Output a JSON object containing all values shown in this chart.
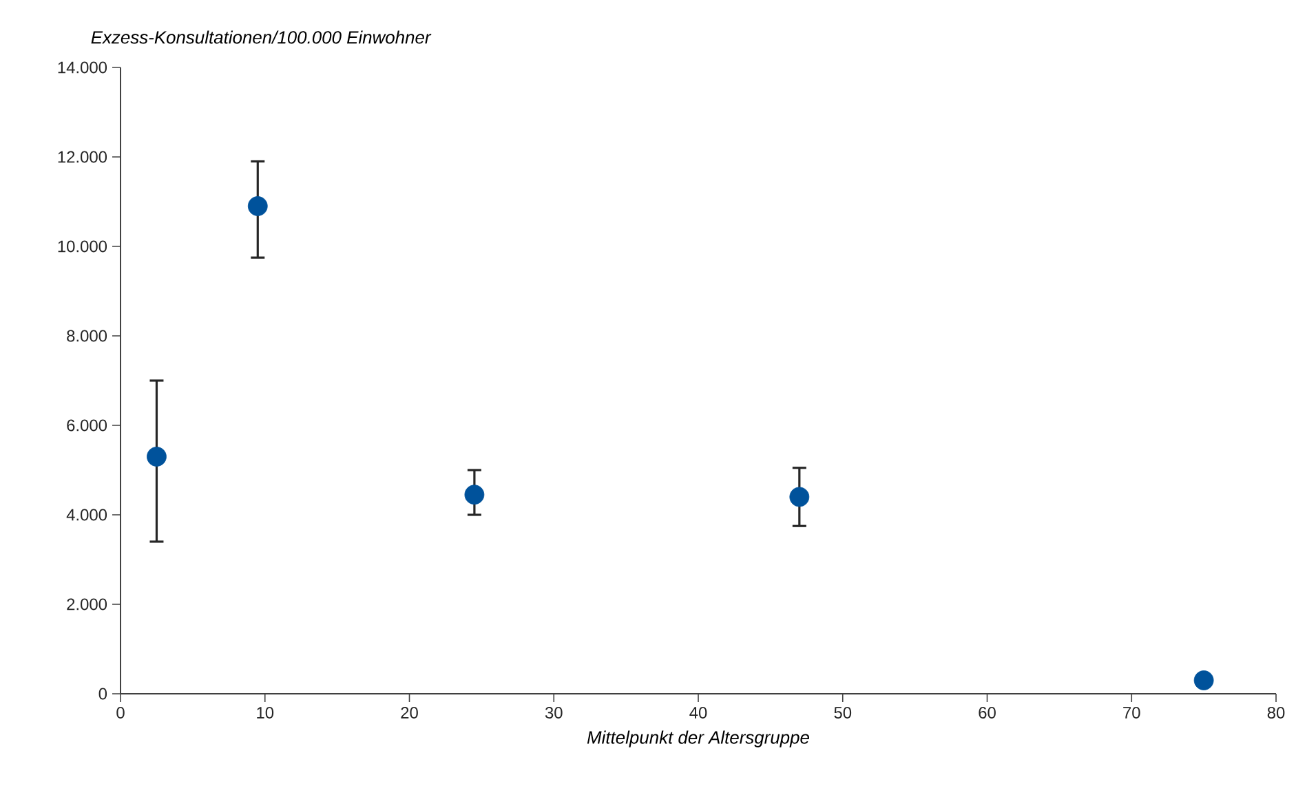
{
  "chart_data": {
    "type": "scatter",
    "ylabel": "Exzess-Konsultationen/100.000 Einwohner",
    "xlabel": "Mittelpunkt der Altersgruppe",
    "x": [
      2.5,
      9.5,
      24.5,
      47,
      75
    ],
    "values": [
      5300,
      10900,
      4450,
      4400,
      300
    ],
    "errors": [
      [
        3400,
        7000
      ],
      [
        9750,
        11900
      ],
      [
        4000,
        5000
      ],
      [
        3750,
        5050
      ],
      null
    ],
    "color": "#00529b",
    "xlim": [
      0,
      80
    ],
    "xticks": [
      0,
      10,
      20,
      30,
      40,
      50,
      60,
      70,
      80
    ],
    "ylim": [
      0,
      14000
    ],
    "yticks": [
      {
        "value": 0,
        "label": "0"
      },
      {
        "value": 2000,
        "label": "2.000"
      },
      {
        "value": 4000,
        "label": "4.000"
      },
      {
        "value": 6000,
        "label": "6.000"
      },
      {
        "value": 8000,
        "label": "8.000"
      },
      {
        "value": 10000,
        "label": "10.000"
      },
      {
        "value": 12000,
        "label": "12.000"
      },
      {
        "value": 14000,
        "label": "14.000"
      }
    ]
  }
}
